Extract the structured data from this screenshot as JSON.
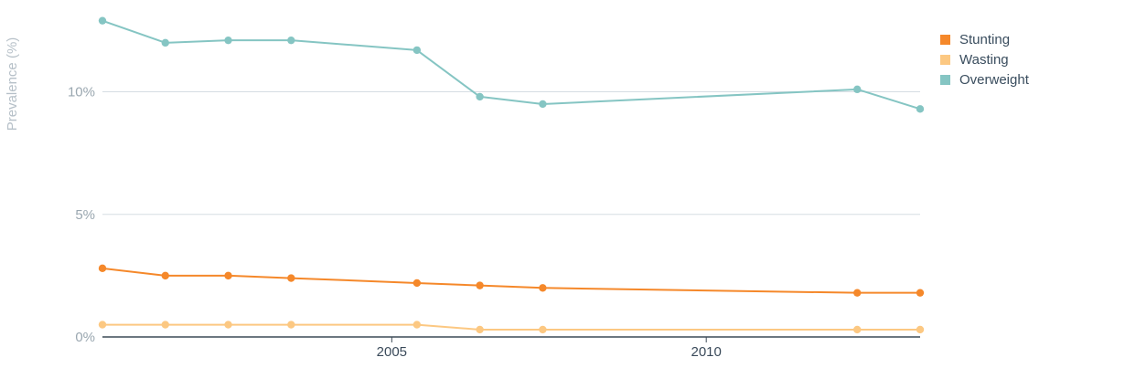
{
  "chart_data": {
    "type": "line",
    "ylabel": "Prevalence (%)",
    "xlabel": "",
    "xlim": [
      2000.4,
      2013.4
    ],
    "ylim": [
      0,
      13
    ],
    "y_ticks": [
      0,
      5,
      10
    ],
    "y_tick_labels": [
      "0%",
      "5%",
      "10%"
    ],
    "x_ticks": [
      2005,
      2010
    ],
    "x_tick_labels": [
      "2005",
      "2010"
    ],
    "grid": true,
    "legend": "top-right",
    "series": [
      {
        "name": "Stunting",
        "color": "#f5882a",
        "x": [
          2000.4,
          2001.4,
          2002.4,
          2003.4,
          2005.4,
          2006.4,
          2007.4,
          2012.4,
          2013.4
        ],
        "values": [
          2.8,
          2.5,
          2.5,
          2.4,
          2.2,
          2.1,
          2.0,
          1.8,
          1.8
        ]
      },
      {
        "name": "Wasting",
        "color": "#fcc882",
        "x": [
          2000.4,
          2001.4,
          2002.4,
          2003.4,
          2005.4,
          2006.4,
          2007.4,
          2012.4,
          2013.4
        ],
        "values": [
          0.5,
          0.5,
          0.5,
          0.5,
          0.5,
          0.3,
          0.3,
          0.3,
          0.3
        ]
      },
      {
        "name": "Overweight",
        "color": "#85c5c3",
        "x": [
          2000.4,
          2001.4,
          2002.4,
          2003.4,
          2005.4,
          2006.4,
          2007.4,
          2012.4,
          2013.4
        ],
        "values": [
          12.9,
          12.0,
          12.1,
          12.1,
          11.7,
          9.8,
          9.5,
          10.1,
          9.3
        ]
      }
    ]
  }
}
